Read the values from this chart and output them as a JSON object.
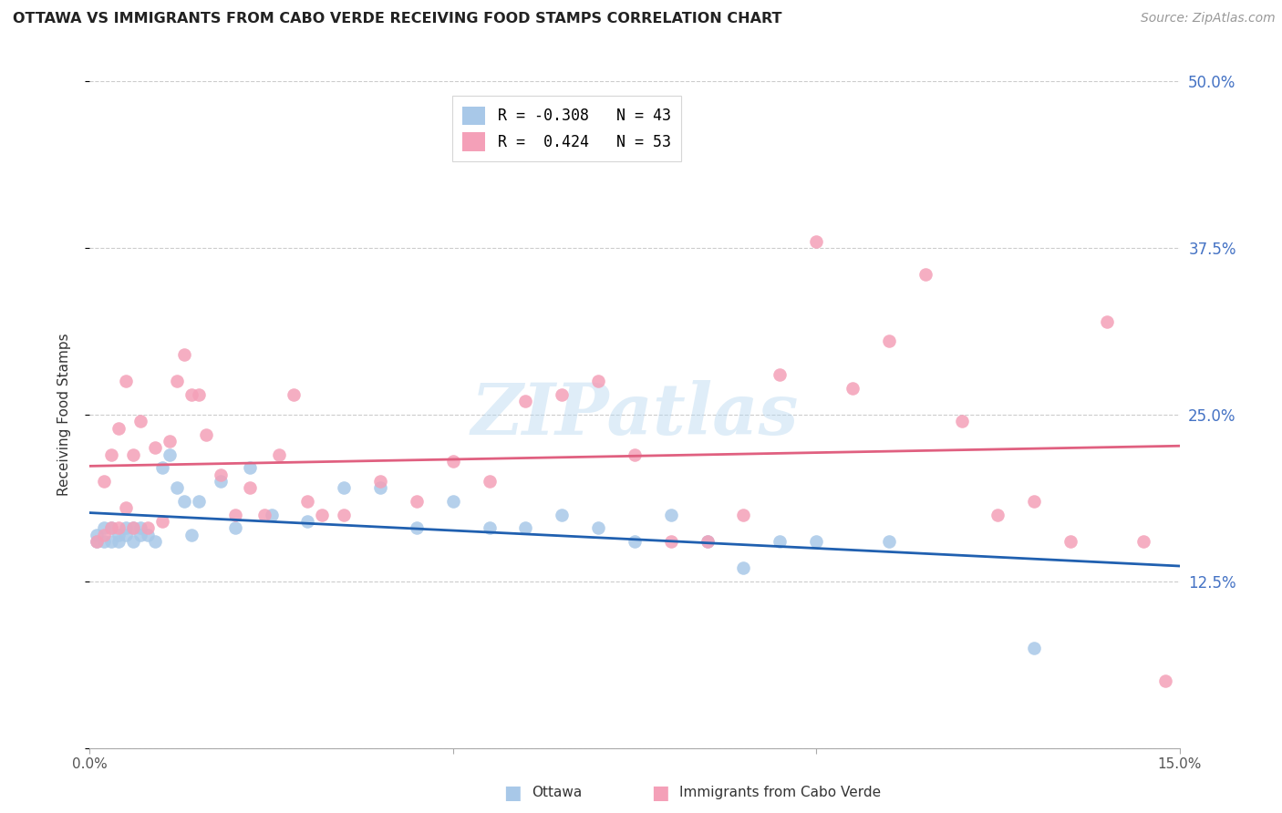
{
  "title": "OTTAWA VS IMMIGRANTS FROM CABO VERDE RECEIVING FOOD STAMPS CORRELATION CHART",
  "source": "Source: ZipAtlas.com",
  "ylabel": "Receiving Food Stamps",
  "xlim": [
    0.0,
    0.15
  ],
  "ylim": [
    0.0,
    0.5
  ],
  "xticks": [
    0.0,
    0.05,
    0.1,
    0.15
  ],
  "xtick_labels": [
    "0.0%",
    "",
    "",
    "15.0%"
  ],
  "yticks": [
    0.0,
    0.125,
    0.25,
    0.375,
    0.5
  ],
  "ytick_labels_right": [
    "",
    "12.5%",
    "25.0%",
    "37.5%",
    "50.0%"
  ],
  "legend1_label": "R = -0.308   N = 43",
  "legend2_label": "R =  0.424   N = 53",
  "color_ottawa": "#a8c8e8",
  "color_cabo": "#f4a0b8",
  "color_line_ottawa": "#2060b0",
  "color_line_cabo": "#e06080",
  "watermark": "ZIPatlas",
  "ottawa_x": [
    0.001,
    0.001,
    0.002,
    0.002,
    0.003,
    0.003,
    0.004,
    0.004,
    0.005,
    0.005,
    0.006,
    0.006,
    0.007,
    0.007,
    0.008,
    0.009,
    0.01,
    0.011,
    0.012,
    0.013,
    0.014,
    0.015,
    0.018,
    0.02,
    0.022,
    0.025,
    0.03,
    0.035,
    0.04,
    0.045,
    0.05,
    0.055,
    0.06,
    0.065,
    0.07,
    0.075,
    0.08,
    0.085,
    0.09,
    0.095,
    0.1,
    0.11,
    0.13
  ],
  "ottawa_y": [
    0.155,
    0.16,
    0.155,
    0.165,
    0.155,
    0.165,
    0.155,
    0.16,
    0.16,
    0.165,
    0.155,
    0.165,
    0.16,
    0.165,
    0.16,
    0.155,
    0.21,
    0.22,
    0.195,
    0.185,
    0.16,
    0.185,
    0.2,
    0.165,
    0.21,
    0.175,
    0.17,
    0.195,
    0.195,
    0.165,
    0.185,
    0.165,
    0.165,
    0.175,
    0.165,
    0.155,
    0.175,
    0.155,
    0.135,
    0.155,
    0.155,
    0.155,
    0.075
  ],
  "cabo_x": [
    0.001,
    0.002,
    0.002,
    0.003,
    0.003,
    0.004,
    0.004,
    0.005,
    0.005,
    0.006,
    0.006,
    0.007,
    0.008,
    0.009,
    0.01,
    0.011,
    0.012,
    0.013,
    0.014,
    0.015,
    0.016,
    0.018,
    0.02,
    0.022,
    0.024,
    0.026,
    0.028,
    0.03,
    0.032,
    0.035,
    0.04,
    0.045,
    0.05,
    0.055,
    0.06,
    0.065,
    0.07,
    0.075,
    0.08,
    0.085,
    0.09,
    0.095,
    0.1,
    0.105,
    0.11,
    0.115,
    0.12,
    0.125,
    0.13,
    0.135,
    0.14,
    0.145,
    0.148
  ],
  "cabo_y": [
    0.155,
    0.16,
    0.2,
    0.165,
    0.22,
    0.165,
    0.24,
    0.18,
    0.275,
    0.165,
    0.22,
    0.245,
    0.165,
    0.225,
    0.17,
    0.23,
    0.275,
    0.295,
    0.265,
    0.265,
    0.235,
    0.205,
    0.175,
    0.195,
    0.175,
    0.22,
    0.265,
    0.185,
    0.175,
    0.175,
    0.2,
    0.185,
    0.215,
    0.2,
    0.26,
    0.265,
    0.275,
    0.22,
    0.155,
    0.155,
    0.175,
    0.28,
    0.38,
    0.27,
    0.305,
    0.355,
    0.245,
    0.175,
    0.185,
    0.155,
    0.32,
    0.155,
    0.05
  ]
}
